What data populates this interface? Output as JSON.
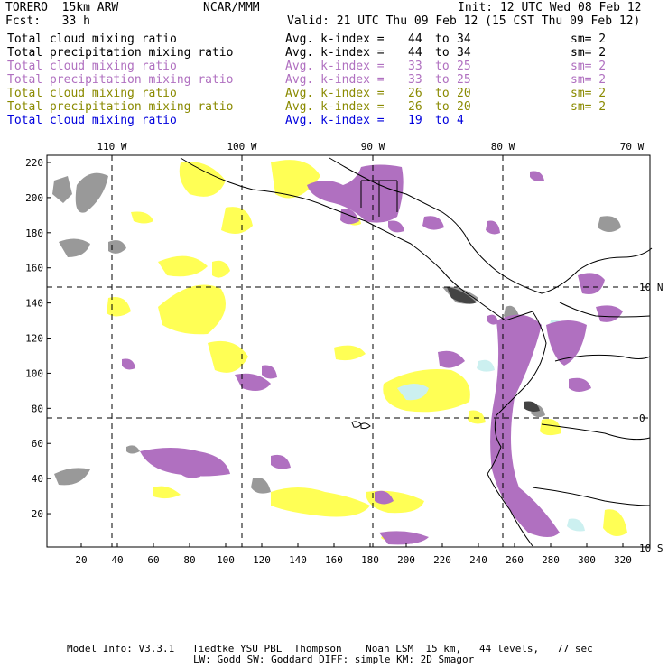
{
  "header": {
    "model": "TORERO  15km ARW",
    "center": "NCAR/MMM",
    "init": "Init: 12 UTC Wed 08 Feb 12",
    "fcst": "Fcst:   33 h",
    "valid": "Valid: 21 UTC Thu 09 Feb 12 (15 CST Thu 09 Feb 12)"
  },
  "legend": [
    {
      "name": "Total cloud mixing ratio",
      "kindex": "Avg. k-index =",
      "from": "44",
      "to_word": "to",
      "to": "34",
      "sm": "sm= 2",
      "color": "#000000"
    },
    {
      "name": "Total precipitation mixing ratio",
      "kindex": "Avg. k-index =",
      "from": "44",
      "to_word": "to",
      "to": "34",
      "sm": "sm= 2",
      "color": "#000000"
    },
    {
      "name": "Total cloud mixing ratio",
      "kindex": "Avg. k-index =",
      "from": "33",
      "to_word": "to",
      "to": "25",
      "sm": "sm= 2",
      "color": "#b070c0"
    },
    {
      "name": "Total precipitation mixing ratio",
      "kindex": "Avg. k-index =",
      "from": "33",
      "to_word": "to",
      "to": "25",
      "sm": "sm= 2",
      "color": "#b070c0"
    },
    {
      "name": "Total cloud mixing ratio",
      "kindex": "Avg. k-index =",
      "from": "26",
      "to_word": "to",
      "to": "20",
      "sm": "sm= 2",
      "color": "#8a8a00"
    },
    {
      "name": "Total precipitation mixing ratio",
      "kindex": "Avg. k-index =",
      "from": "26",
      "to_word": "to",
      "to": "20",
      "sm": "sm= 2",
      "color": "#8a8a00"
    },
    {
      "name": "Total cloud mixing ratio",
      "kindex": "Avg. k-index =",
      "from": "19",
      "to_word": "to",
      "to": "4",
      "sm": "",
      "color": "#0000dd"
    }
  ],
  "map": {
    "lon_labels": [
      "110 W",
      "100 W",
      "90 W",
      "80 W",
      "70 W"
    ],
    "lat_labels": [
      "10 N",
      "0",
      "10 S"
    ],
    "y_ticks": [
      "220",
      "200",
      "180",
      "160",
      "140",
      "120",
      "100",
      "80",
      "60",
      "40",
      "20"
    ],
    "x_ticks": [
      "20",
      "40",
      "60",
      "80",
      "100",
      "120",
      "140",
      "160",
      "180",
      "200",
      "220",
      "240",
      "260",
      "280",
      "300",
      "320"
    ],
    "colors": {
      "cloud_high": "#999999",
      "purple": "#b070c0",
      "yellow": "#ffff55",
      "light_blue": "#ccf0f0",
      "coast": "#000000",
      "grid": "#000000"
    }
  },
  "footer": {
    "line1": "Model Info: V3.3.1   Tiedtke YSU PBL  Thompson    Noah LSM  15 km,   44 levels,   77 sec",
    "line2": "LW: Godd SW: Goddard DIFF: simple KM: 2D Smagor"
  }
}
